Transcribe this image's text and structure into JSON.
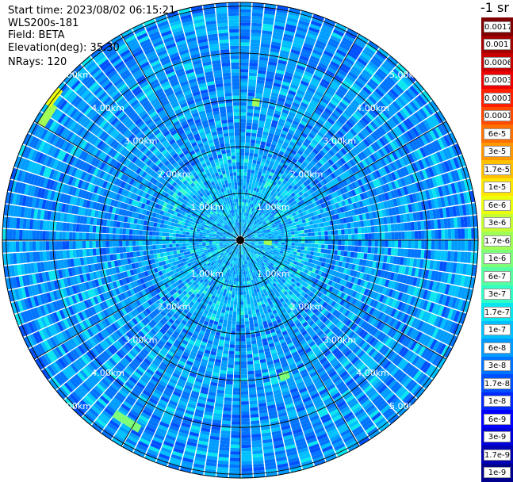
{
  "info": {
    "start_time": "Start time: 2023/08/02 06:15:21",
    "instrument": "WLS200s-181",
    "field": "Field: BETA",
    "elevation": "Elevation(deg): 35.30",
    "nrays": "NRays: 120"
  },
  "colorbar": {
    "title": "-1 sr",
    "labels": [
      "0.0017",
      "0.001",
      "0.0006",
      "0.0003",
      "0.00017",
      "0.0001",
      "6e-5",
      "3e-5",
      "1.7e-5",
      "1e-5",
      "6e-6",
      "3e-6",
      "1.7e-6",
      "1e-6",
      "6e-7",
      "3e-7",
      "1.7e-7",
      "1e-7",
      "6e-8",
      "3e-8",
      "1.7e-8",
      "1e-8",
      "6e-9",
      "3e-9",
      "1.7e-9",
      "1e-9"
    ],
    "colors": [
      "#7f0000",
      "#a30000",
      "#c80000",
      "#ee0000",
      "#ff2000",
      "#ff4a00",
      "#ff7000",
      "#ff9800",
      "#ffc000",
      "#ffe600",
      "#ecff0c",
      "#c6ff31",
      "#a0ff56",
      "#7dff7a",
      "#56ffa0",
      "#30ffc6",
      "#0ae6f0",
      "#00c0ff",
      "#009cff",
      "#0074ff",
      "#0050ff",
      "#0028ff",
      "#0000ff",
      "#0000da",
      "#0000b2",
      "#00008f"
    ]
  },
  "chart_data": {
    "type": "polar-ppi",
    "field": "BETA",
    "elevation_deg": 35.3,
    "n_rays": 120,
    "range_rings_km": [
      1.0,
      2.0,
      3.0,
      4.0,
      5.0
    ],
    "ring_labels": [
      "1.00km",
      "2.00km",
      "3.00km",
      "4.00km",
      "5.00km"
    ],
    "azimuth_grid_step_deg": 30,
    "color_scale": "log",
    "color_range": [
      "1e-9",
      "0.0017"
    ],
    "dominant_values": "mostly 1e-8 to 1.7e-7, with isolated 1.7e-6 to 3e-5 patches",
    "grid": true
  }
}
